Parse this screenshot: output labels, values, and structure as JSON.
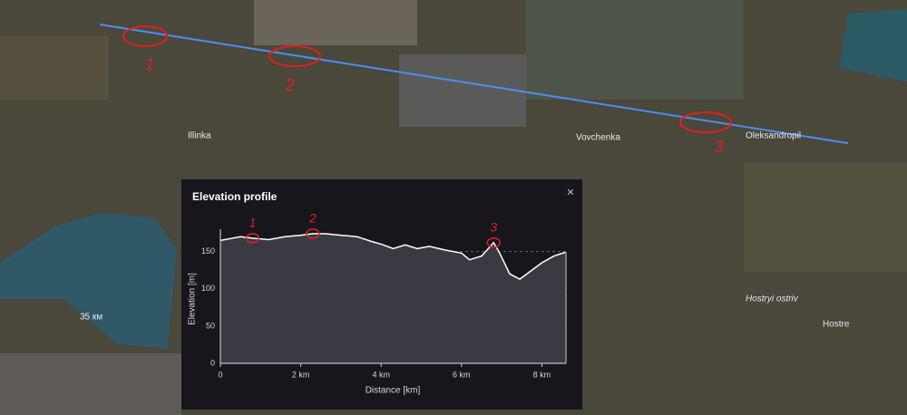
{
  "map": {
    "places": [
      "Illinka",
      "Vovchenka",
      "Oleksandropil",
      "Hostre",
      "Hostryi ostriv",
      "35 км"
    ],
    "annotations": [
      "1",
      "2",
      "3"
    ]
  },
  "panel": {
    "close": "×"
  },
  "chart_data": {
    "type": "area",
    "title": "Elevation profile",
    "x_label": "Distance [km]",
    "y_label": "Elevation [m]",
    "x": [
      0,
      0.5,
      0.8,
      1.2,
      1.6,
      2.0,
      2.3,
      2.6,
      3.0,
      3.4,
      3.8,
      4.0,
      4.3,
      4.6,
      4.9,
      5.2,
      5.6,
      6.0,
      6.2,
      6.5,
      6.8,
      6.95,
      7.2,
      7.45,
      7.7,
      8.0,
      8.3,
      8.58
    ],
    "series": [
      {
        "name": "Elevation",
        "color": "#ffffff",
        "values": [
          165,
          170,
          168,
          166,
          170,
          172,
          174,
          174,
          172,
          170,
          163,
          160,
          154,
          159,
          154,
          157,
          152,
          148,
          139,
          144,
          162,
          148,
          120,
          113,
          123,
          135,
          144,
          149
        ]
      }
    ],
    "xlim": [
      0,
      8.6
    ],
    "ylim": [
      0,
      180
    ],
    "xticks": [
      0,
      {
        "value": 2,
        "label": "2 km"
      },
      {
        "value": 4,
        "label": "4 km"
      },
      {
        "value": 6,
        "label": "6 km"
      },
      {
        "value": 8,
        "label": "8 km"
      }
    ],
    "yticks": [
      0,
      50,
      100,
      150
    ],
    "grid": true,
    "annotations": [
      {
        "text": "1",
        "x": 0.8
      },
      {
        "text": "2",
        "x": 2.3
      },
      {
        "text": "3",
        "x": 6.8
      }
    ]
  }
}
